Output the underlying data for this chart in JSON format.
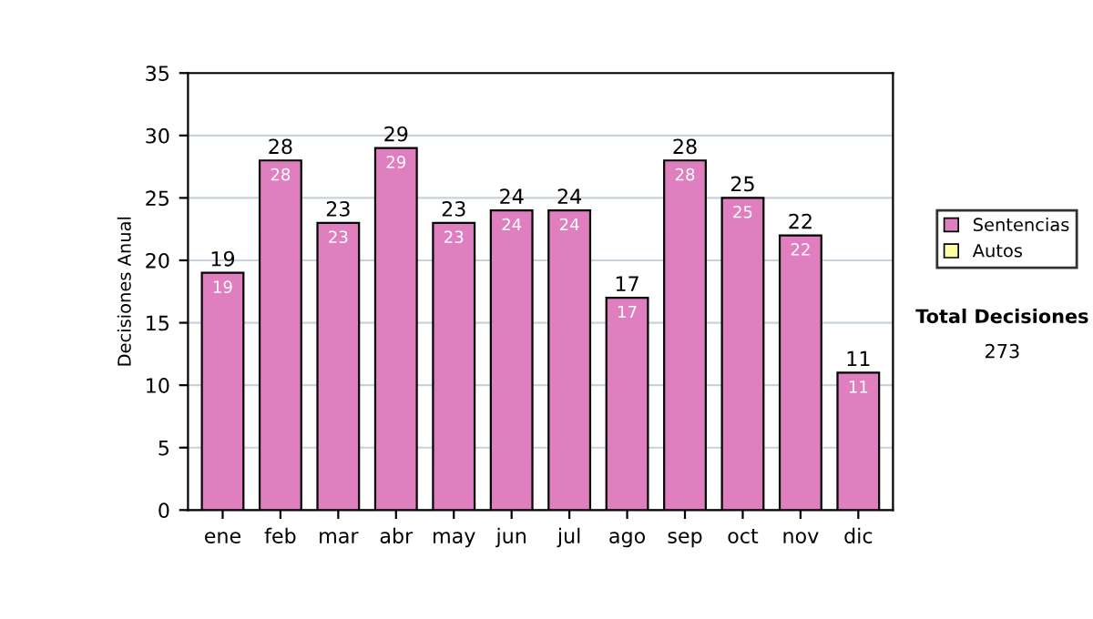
{
  "chart_data": {
    "type": "bar",
    "stacked": true,
    "ylabel": "Decisiones Anual",
    "categories": [
      "ene",
      "feb",
      "mar",
      "abr",
      "may",
      "jun",
      "jul",
      "ago",
      "sep",
      "oct",
      "nov",
      "dic"
    ],
    "series": [
      {
        "name": "Sentencias",
        "color": "#e07fc0",
        "values": [
          19,
          28,
          23,
          29,
          23,
          24,
          24,
          17,
          28,
          25,
          22,
          11
        ],
        "value_labels": [
          "19",
          "28",
          "23",
          "29",
          "23",
          "24",
          "24",
          "17",
          "28",
          "25",
          "22",
          "11"
        ]
      },
      {
        "name": "Autos",
        "color": "#ffffa0",
        "values": [
          null,
          null,
          null,
          null,
          null,
          null,
          null,
          null,
          null,
          null,
          null,
          null
        ]
      }
    ],
    "totals": [
      "19",
      "28",
      "23",
      "29",
      "23",
      "24",
      "24",
      "17",
      "28",
      "25",
      "22",
      "11"
    ],
    "ylim": [
      0,
      35
    ],
    "yticks": [
      0,
      5,
      10,
      15,
      20,
      25,
      30,
      35
    ],
    "grid": "y",
    "legend": "right",
    "annotations": [
      "Total Decisiones",
      "273"
    ]
  }
}
